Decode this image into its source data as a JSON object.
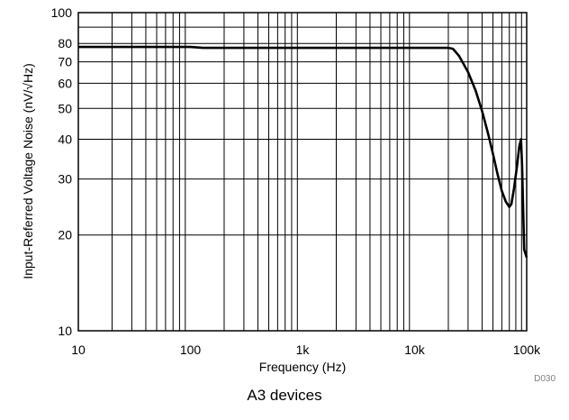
{
  "chart_data": {
    "type": "line",
    "title": "",
    "xlabel": "Frequency (Hz)",
    "ylabel": "Input-Referred Voltage Noise (nV/√Hz)",
    "x_scale": "log",
    "y_scale": "log",
    "xlim": [
      10,
      100000
    ],
    "ylim": [
      10,
      100
    ],
    "x_ticks": [
      {
        "value": 10,
        "label": "10"
      },
      {
        "value": 100,
        "label": "100"
      },
      {
        "value": 1000,
        "label": "1k"
      },
      {
        "value": 10000,
        "label": "10k"
      },
      {
        "value": 100000,
        "label": "100k"
      }
    ],
    "y_ticks": [
      {
        "value": 10,
        "label": "10"
      },
      {
        "value": 20,
        "label": "20"
      },
      {
        "value": 30,
        "label": "30"
      },
      {
        "value": 40,
        "label": "40"
      },
      {
        "value": 50,
        "label": "50"
      },
      {
        "value": 60,
        "label": "60"
      },
      {
        "value": 70,
        "label": "70"
      },
      {
        "value": 80,
        "label": "80"
      },
      {
        "value": 100,
        "label": "100"
      }
    ],
    "grid": true,
    "series": [
      {
        "color": "#000000",
        "x": [
          10,
          20,
          50,
          100,
          130,
          200,
          500,
          1000,
          2000,
          5000,
          10000,
          15000,
          20000,
          22000,
          25000,
          30000,
          35000,
          40000,
          45000,
          50000,
          55000,
          60000,
          65000,
          70000,
          73000,
          77000,
          82000,
          86000,
          89000,
          91000,
          93000,
          95000,
          100000
        ],
        "y": [
          78,
          78,
          78,
          78,
          77.5,
          77.5,
          77.5,
          77.5,
          77.5,
          77.5,
          77.5,
          77.5,
          77.5,
          77,
          73,
          65,
          57,
          49,
          42,
          36,
          31,
          27.5,
          25.5,
          24.5,
          25,
          28,
          33,
          38,
          40,
          33,
          24,
          18,
          17
        ]
      }
    ],
    "code": "D030"
  },
  "caption": "A3 devices"
}
